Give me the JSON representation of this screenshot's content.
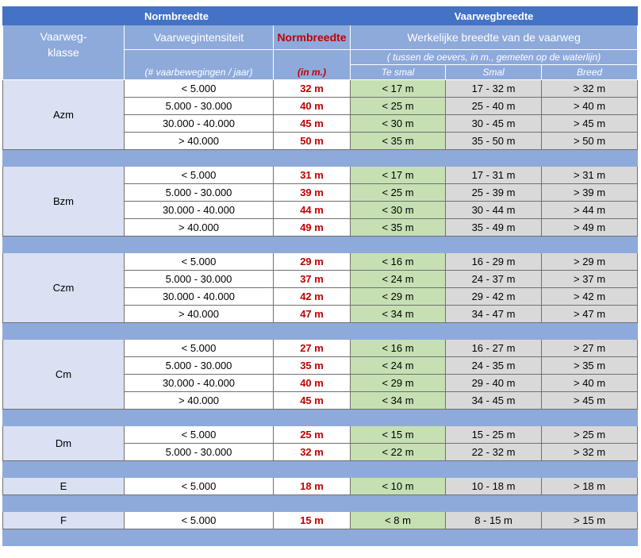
{
  "header": {
    "top_left": "Normbreedte",
    "top_right": "Vaarwegbreedte",
    "col_klasse_1": "Vaarweg-",
    "col_klasse_2": "klasse",
    "col_intensiteit": "Vaarwegintensiteit",
    "col_intensiteit_sub": "(# vaarbewegingen / jaar)",
    "col_norm": "Normbreedte",
    "col_norm_sub": "(in m.)",
    "col_werkelijk": "Werkelijke breedte van de vaarweg",
    "col_werkelijk_sub": "( tussen de oevers, in m., gemeten op de waterlijn)",
    "col_tesmal": "Te smal",
    "col_smal": "Smal",
    "col_breed": "Breed"
  },
  "groups": [
    {
      "klasse": "Azm",
      "rows": [
        {
          "intensiteit": "< 5.000",
          "norm": "32 m",
          "tesmal": "< 17 m",
          "smal": "17 - 32 m",
          "breed": "> 32 m"
        },
        {
          "intensiteit": "5.000 - 30.000",
          "norm": "40 m",
          "tesmal": "< 25 m",
          "smal": "25 - 40 m",
          "breed": "> 40 m"
        },
        {
          "intensiteit": "30.000 - 40.000",
          "norm": "45 m",
          "tesmal": "< 30 m",
          "smal": "30 - 45 m",
          "breed": "> 45 m"
        },
        {
          "intensiteit": "> 40.000",
          "norm": "50 m",
          "tesmal": "< 35 m",
          "smal": "35 - 50 m",
          "breed": "> 50 m"
        }
      ]
    },
    {
      "klasse": "Bzm",
      "rows": [
        {
          "intensiteit": "< 5.000",
          "norm": "31 m",
          "tesmal": "< 17 m",
          "smal": "17 - 31 m",
          "breed": "> 31 m"
        },
        {
          "intensiteit": "5.000 - 30.000",
          "norm": "39 m",
          "tesmal": "< 25 m",
          "smal": "25 - 39 m",
          "breed": "> 39 m"
        },
        {
          "intensiteit": "30.000 - 40.000",
          "norm": "44 m",
          "tesmal": "< 30 m",
          "smal": "30 - 44 m",
          "breed": "> 44 m"
        },
        {
          "intensiteit": "> 40.000",
          "norm": "49 m",
          "tesmal": "< 35 m",
          "smal": "35 - 49 m",
          "breed": "> 49 m"
        }
      ]
    },
    {
      "klasse": "Czm",
      "rows": [
        {
          "intensiteit": "< 5.000",
          "norm": "29 m",
          "tesmal": "< 16 m",
          "smal": "16 - 29 m",
          "breed": "> 29 m"
        },
        {
          "intensiteit": "5.000 - 30.000",
          "norm": "37 m",
          "tesmal": "< 24 m",
          "smal": "24 - 37 m",
          "breed": "> 37 m"
        },
        {
          "intensiteit": "30.000 - 40.000",
          "norm": "42 m",
          "tesmal": "< 29 m",
          "smal": "29 - 42 m",
          "breed": "> 42 m"
        },
        {
          "intensiteit": "> 40.000",
          "norm": "47 m",
          "tesmal": "< 34 m",
          "smal": "34 - 47 m",
          "breed": "> 47 m"
        }
      ]
    },
    {
      "klasse": "Cm",
      "rows": [
        {
          "intensiteit": "< 5.000",
          "norm": "27 m",
          "tesmal": "< 16 m",
          "smal": "16 - 27 m",
          "breed": "> 27 m"
        },
        {
          "intensiteit": "5.000 - 30.000",
          "norm": "35 m",
          "tesmal": "< 24 m",
          "smal": "24 - 35 m",
          "breed": "> 35 m"
        },
        {
          "intensiteit": "30.000 - 40.000",
          "norm": "40 m",
          "tesmal": "< 29 m",
          "smal": "29 - 40 m",
          "breed": "> 40 m"
        },
        {
          "intensiteit": "> 40.000",
          "norm": "45 m",
          "tesmal": "< 34 m",
          "smal": "34 - 45 m",
          "breed": "> 45 m"
        }
      ]
    },
    {
      "klasse": "Dm",
      "rows": [
        {
          "intensiteit": "< 5.000",
          "norm": "25 m",
          "tesmal": "< 15 m",
          "smal": "15 - 25 m",
          "breed": "> 25 m"
        },
        {
          "intensiteit": "5.000 - 30.000",
          "norm": "32 m",
          "tesmal": "< 22 m",
          "smal": "22 - 32 m",
          "breed": "> 32 m"
        }
      ]
    },
    {
      "klasse": "E",
      "rows": [
        {
          "intensiteit": "< 5.000",
          "norm": "18 m",
          "tesmal": "< 10 m",
          "smal": "10 - 18 m",
          "breed": "> 18 m"
        }
      ]
    },
    {
      "klasse": "F",
      "rows": [
        {
          "intensiteit": "< 5.000",
          "norm": "15 m",
          "tesmal": "< 8 m",
          "smal": "8 - 15 m",
          "breed": "> 15 m"
        }
      ]
    }
  ],
  "colors": {
    "header_dark": "#4472c4",
    "header_light": "#8eaadb",
    "klasse_bg": "#d9e1f2",
    "norm_red": "#c00000",
    "te_smal_green": "#c6e0b4",
    "smal_grey": "#d9d9d9"
  }
}
